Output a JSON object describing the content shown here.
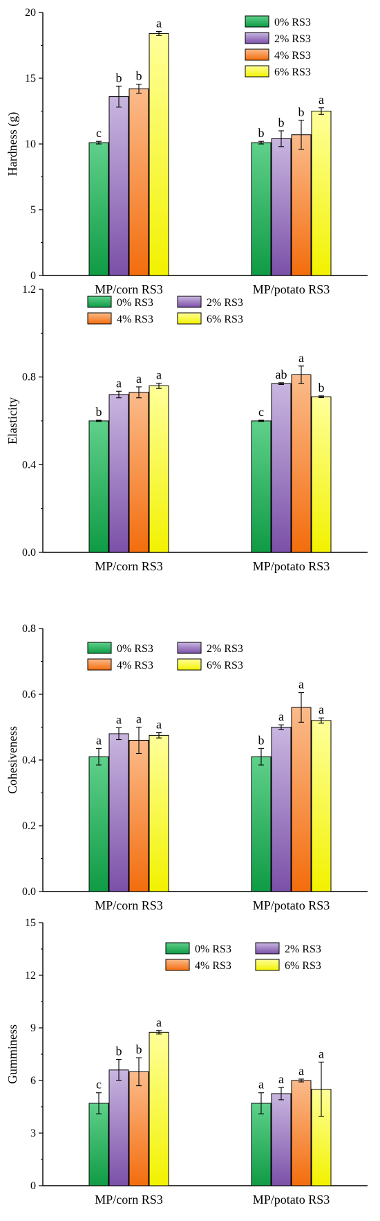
{
  "series_styles": [
    {
      "name": "0% RS3",
      "light": "#5fd08a",
      "dark": "#0f9b45"
    },
    {
      "name": "2% RS3",
      "light": "#c9b6e0",
      "dark": "#7b50a8"
    },
    {
      "name": "4% RS3",
      "light": "#fbbb8b",
      "dark": "#f36d0d"
    },
    {
      "name": "6% RS3",
      "light": "#ffff9a",
      "dark": "#f2f200"
    }
  ],
  "chart_data": [
    {
      "type": "bar",
      "ylabel": "Hardness (g)",
      "xlabel": "",
      "ylim": [
        0,
        20
      ],
      "yticks": [
        "0",
        "5",
        "10",
        "15",
        "20"
      ],
      "categories": [
        "MP/corn RS3",
        "MP/potato RS3"
      ],
      "legend": "top-right",
      "legend_cols": 1,
      "series": [
        {
          "name": "0% RS3",
          "values": [
            10.1,
            10.1
          ],
          "errors": [
            0.1,
            0.1
          ],
          "sig": [
            "c",
            "b"
          ]
        },
        {
          "name": "2% RS3",
          "values": [
            13.6,
            10.4
          ],
          "errors": [
            0.8,
            0.6
          ],
          "sig": [
            "b",
            "b"
          ]
        },
        {
          "name": "4% RS3",
          "values": [
            14.2,
            10.7
          ],
          "errors": [
            0.35,
            1.1
          ],
          "sig": [
            "b",
            "b"
          ]
        },
        {
          "name": "6% RS3",
          "values": [
            18.4,
            12.5
          ],
          "errors": [
            0.15,
            0.25
          ],
          "sig": [
            "a",
            "a"
          ]
        }
      ]
    },
    {
      "type": "bar",
      "ylabel": "Elasticity",
      "xlabel": "",
      "ylim": [
        0,
        1.2
      ],
      "yticks": [
        "0.0",
        "0.4",
        "0.8",
        "1.2"
      ],
      "categories": [
        "MP/corn RS3",
        "MP/potato RS3"
      ],
      "legend": "top",
      "legend_cols": 2,
      "series": [
        {
          "name": "0% RS3",
          "values": [
            0.6,
            0.6
          ],
          "errors": [
            0.003,
            0.003
          ],
          "sig": [
            "b",
            "c"
          ]
        },
        {
          "name": "2% RS3",
          "values": [
            0.72,
            0.77
          ],
          "errors": [
            0.015,
            0.004
          ],
          "sig": [
            "a",
            "ab"
          ]
        },
        {
          "name": "4% RS3",
          "values": [
            0.73,
            0.81
          ],
          "errors": [
            0.025,
            0.04
          ],
          "sig": [
            "a",
            "a"
          ]
        },
        {
          "name": "6% RS3",
          "values": [
            0.76,
            0.71
          ],
          "errors": [
            0.012,
            0.004
          ],
          "sig": [
            "a",
            "b"
          ]
        }
      ]
    },
    {
      "type": "bar",
      "ylabel": "Cohesiveness",
      "xlabel": "",
      "ylim": [
        0,
        0.8
      ],
      "yticks": [
        "0.0",
        "0.2",
        "0.4",
        "0.6",
        "0.8"
      ],
      "categories": [
        "MP/corn RS3",
        "MP/potato RS3"
      ],
      "legend": "top",
      "legend_cols": 2,
      "series": [
        {
          "name": "0% RS3",
          "values": [
            0.41,
            0.41
          ],
          "errors": [
            0.025,
            0.025
          ],
          "sig": [
            "a",
            "b"
          ]
        },
        {
          "name": "2% RS3",
          "values": [
            0.48,
            0.5
          ],
          "errors": [
            0.018,
            0.007
          ],
          "sig": [
            "a",
            "a"
          ]
        },
        {
          "name": "4% RS3",
          "values": [
            0.46,
            0.56
          ],
          "errors": [
            0.04,
            0.045
          ],
          "sig": [
            "a",
            "a"
          ]
        },
        {
          "name": "6% RS3",
          "values": [
            0.475,
            0.52
          ],
          "errors": [
            0.008,
            0.008
          ],
          "sig": [
            "a",
            "a"
          ]
        }
      ]
    },
    {
      "type": "bar",
      "ylabel": "Gumminess",
      "xlabel": "",
      "ylim": [
        0,
        15
      ],
      "yticks": [
        "0",
        "3",
        "6",
        "9",
        "12",
        "15"
      ],
      "categories": [
        "MP/corn RS3",
        "MP/potato RS3"
      ],
      "legend": "top-right",
      "legend_cols": 2,
      "series": [
        {
          "name": "0% RS3",
          "values": [
            4.7,
            4.7
          ],
          "errors": [
            0.6,
            0.6
          ],
          "sig": [
            "c",
            "a"
          ]
        },
        {
          "name": "2% RS3",
          "values": [
            6.6,
            5.25
          ],
          "errors": [
            0.6,
            0.35
          ],
          "sig": [
            "b",
            "a"
          ]
        },
        {
          "name": "4% RS3",
          "values": [
            6.5,
            6.0
          ],
          "errors": [
            0.8,
            0.08
          ],
          "sig": [
            "b",
            "a"
          ]
        },
        {
          "name": "6% RS3",
          "values": [
            8.75,
            5.5
          ],
          "errors": [
            0.1,
            1.55
          ],
          "sig": [
            "a",
            "a"
          ]
        }
      ]
    }
  ]
}
